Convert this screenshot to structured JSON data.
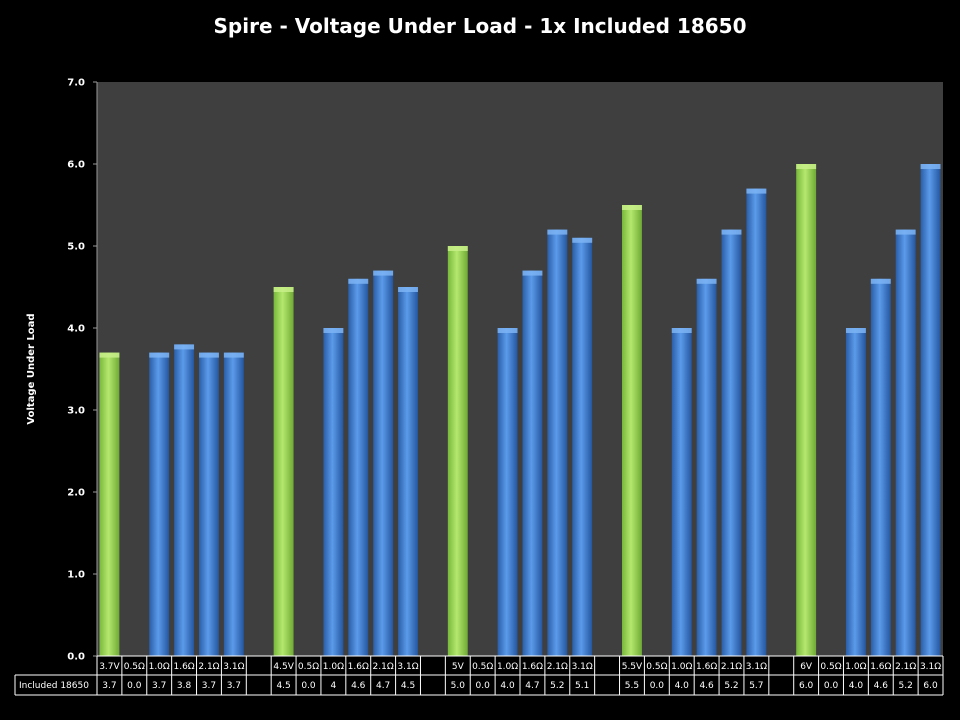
{
  "chart_data": {
    "type": "bar",
    "title": "Spire - Voltage Under Load - 1x Included 18650",
    "xlabel": "",
    "ylabel": "Voltage Under Load",
    "ylim": [
      0,
      7
    ],
    "yticks": [
      "0.0",
      "1.0",
      "2.0",
      "3.0",
      "4.0",
      "5.0",
      "6.0",
      "7.0"
    ],
    "grid": false,
    "categories": [
      "3.7V",
      "0.5Ω",
      "1.0Ω",
      "1.6Ω",
      "2.1Ω",
      "3.1Ω",
      "",
      "4.5V",
      "0.5Ω",
      "1.0Ω",
      "1.6Ω",
      "2.1Ω",
      "3.1Ω",
      "",
      "5V",
      "0.5Ω",
      "1.0Ω",
      "1.6Ω",
      "2.1Ω",
      "3.1Ω",
      "",
      "5.5V",
      "0.5Ω",
      "1.0Ω",
      "1.6Ω",
      "2.1Ω",
      "3.1Ω",
      "",
      "6V",
      "0.5Ω",
      "1.0Ω",
      "1.6Ω",
      "2.1Ω",
      "3.1Ω"
    ],
    "series": [
      {
        "name": "Included 18650",
        "values": [
          3.7,
          0.0,
          3.7,
          3.8,
          3.7,
          3.7,
          null,
          4.5,
          0.0,
          4.0,
          4.6,
          4.7,
          4.5,
          null,
          5.0,
          0.0,
          4.0,
          4.7,
          5.2,
          5.1,
          null,
          5.5,
          0.0,
          4.0,
          4.6,
          5.2,
          5.7,
          null,
          6.0,
          0.0,
          4.0,
          4.6,
          5.2,
          6.0
        ],
        "labels": [
          "3.7",
          "0.0",
          "3.7",
          "3.8",
          "3.7",
          "3.7",
          "",
          "4.5",
          "0.0",
          "4",
          "4.6",
          "4.7",
          "4.5",
          "",
          "5.0",
          "0.0",
          "4.0",
          "4.7",
          "5.2",
          "5.1",
          "",
          "5.5",
          "0.0",
          "4.0",
          "4.6",
          "5.2",
          "5.7",
          "",
          "6.0",
          "0.0",
          "4.0",
          "4.6",
          "5.2",
          "6.0"
        ]
      }
    ],
    "highlight_categories": [
      "3.7V",
      "4.5V",
      "5V",
      "5.5V",
      "6V"
    ],
    "colors": {
      "background": "#000000",
      "plot_area": "#3f3f3f",
      "bar_blue": "#3a7bd5",
      "bar_green": "#92d050",
      "text": "#ffffff"
    }
  }
}
